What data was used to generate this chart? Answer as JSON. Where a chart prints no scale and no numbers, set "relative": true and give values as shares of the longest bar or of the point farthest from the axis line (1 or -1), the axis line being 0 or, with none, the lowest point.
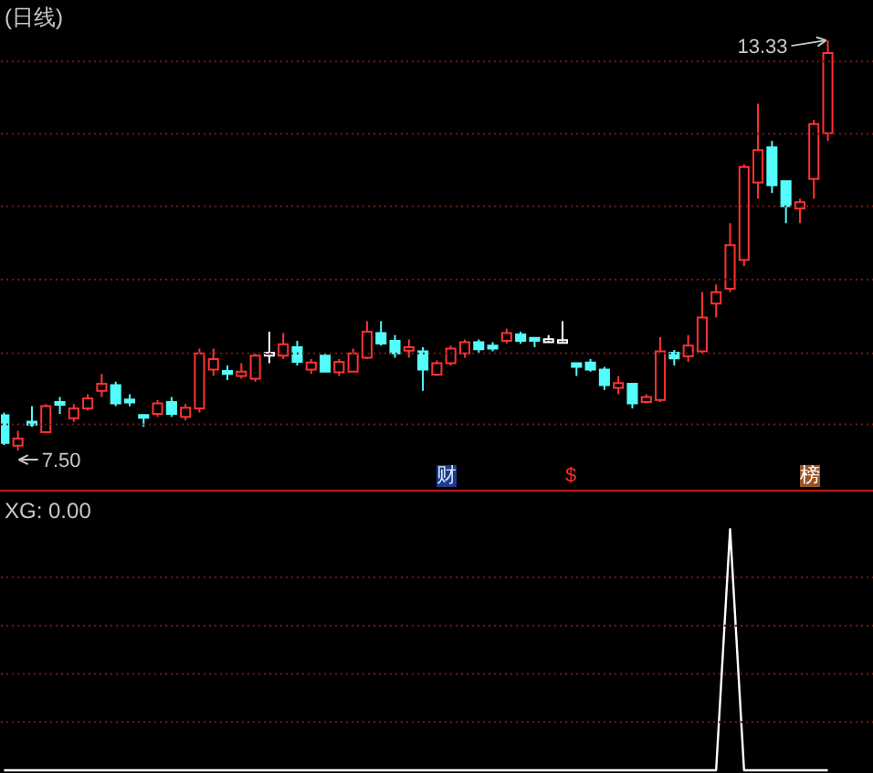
{
  "chart_data": [
    {
      "type": "candlestick",
      "title": "(日线)",
      "categories": [
        null,
        null,
        null,
        null,
        null,
        null,
        null,
        null,
        null,
        null,
        null,
        null,
        null,
        null,
        null,
        null,
        null,
        null,
        null,
        null,
        null,
        null,
        null,
        null,
        null,
        null,
        null,
        null,
        null,
        null,
        null,
        null,
        null,
        null,
        null,
        null,
        null,
        null,
        null,
        null,
        null,
        null,
        null,
        null,
        null,
        null,
        null,
        null,
        null,
        null,
        null,
        null,
        null,
        null,
        null,
        null,
        null,
        null,
        null,
        null
      ],
      "ohlc": [
        [
          8.0,
          8.04,
          7.58,
          7.61
        ],
        [
          7.57,
          7.78,
          7.5,
          7.67
        ],
        [
          7.91,
          8.13,
          7.84,
          7.87
        ],
        [
          7.76,
          8.16,
          7.76,
          8.13
        ],
        [
          8.19,
          8.26,
          8.02,
          8.15
        ],
        [
          7.96,
          8.16,
          7.91,
          8.1
        ],
        [
          8.1,
          8.3,
          8.07,
          8.24
        ],
        [
          8.35,
          8.59,
          8.26,
          8.45
        ],
        [
          8.43,
          8.48,
          8.13,
          8.17
        ],
        [
          8.22,
          8.3,
          8.13,
          8.19
        ],
        [
          8.0,
          8.0,
          7.84,
          7.97
        ],
        [
          8.02,
          8.22,
          7.98,
          8.17
        ],
        [
          8.19,
          8.26,
          7.98,
          8.02
        ],
        [
          7.98,
          8.16,
          7.93,
          8.11
        ],
        [
          8.1,
          8.95,
          8.04,
          8.88
        ],
        [
          8.65,
          8.95,
          8.56,
          8.8
        ],
        [
          8.63,
          8.71,
          8.5,
          8.59
        ],
        [
          8.56,
          8.74,
          8.52,
          8.62
        ],
        [
          8.52,
          8.88,
          8.48,
          8.85
        ],
        [
          8.87,
          9.19,
          8.74,
          8.87
        ],
        [
          8.85,
          9.17,
          8.8,
          9.01
        ],
        [
          8.97,
          9.06,
          8.71,
          8.76
        ],
        [
          8.65,
          8.8,
          8.59,
          8.75
        ],
        [
          8.85,
          8.88,
          8.61,
          8.62
        ],
        [
          8.61,
          8.8,
          8.56,
          8.76
        ],
        [
          8.62,
          8.95,
          8.61,
          8.88
        ],
        [
          8.82,
          9.34,
          8.8,
          9.19
        ],
        [
          9.17,
          9.34,
          8.99,
          9.02
        ],
        [
          9.06,
          9.14,
          8.82,
          8.88
        ],
        [
          8.92,
          9.08,
          8.82,
          8.97
        ],
        [
          8.91,
          8.97,
          8.35,
          8.65
        ],
        [
          8.58,
          8.78,
          8.56,
          8.74
        ],
        [
          8.74,
          8.99,
          8.71,
          8.95
        ],
        [
          8.88,
          9.08,
          8.82,
          9.04
        ],
        [
          9.04,
          9.08,
          8.88,
          8.94
        ],
        [
          8.99,
          9.04,
          8.91,
          8.95
        ],
        [
          9.06,
          9.23,
          9.02,
          9.17
        ],
        [
          9.15,
          9.19,
          9.02,
          9.06
        ],
        [
          9.1,
          9.1,
          8.97,
          9.06
        ],
        [
          9.06,
          9.14,
          9.06,
          9.06
        ],
        [
          9.05,
          9.34,
          9.05,
          9.05
        ],
        [
          8.74,
          8.74,
          8.56,
          8.69
        ],
        [
          8.75,
          8.8,
          8.62,
          8.65
        ],
        [
          8.65,
          8.69,
          8.36,
          8.43
        ],
        [
          8.39,
          8.56,
          8.3,
          8.46
        ],
        [
          8.45,
          8.45,
          8.1,
          8.17
        ],
        [
          8.19,
          8.3,
          8.17,
          8.26
        ],
        [
          8.22,
          9.11,
          8.19,
          8.91
        ],
        [
          8.89,
          8.93,
          8.71,
          8.81
        ],
        [
          8.84,
          9.14,
          8.76,
          8.99
        ],
        [
          8.91,
          9.75,
          8.88,
          9.39
        ],
        [
          9.59,
          9.86,
          9.39,
          9.75
        ],
        [
          9.8,
          10.73,
          9.75,
          10.42
        ],
        [
          10.21,
          11.57,
          10.12,
          11.53
        ],
        [
          11.31,
          12.43,
          11.08,
          11.77
        ],
        [
          11.81,
          11.9,
          11.16,
          11.27
        ],
        [
          11.33,
          11.33,
          10.73,
          10.97
        ],
        [
          10.94,
          11.08,
          10.73,
          11.03
        ],
        [
          11.36,
          12.2,
          11.08,
          12.14
        ],
        [
          12.01,
          13.33,
          11.9,
          13.15
        ]
      ],
      "colors": [
        "#54fcfc",
        "#ff3232",
        "#54fcfc",
        "#ff3232",
        "#54fcfc",
        "#ff3232",
        "#ff3232",
        "#ff3232",
        "#54fcfc",
        "#54fcfc",
        "#54fcfc",
        "#ff3232",
        "#54fcfc",
        "#ff3232",
        "#ff3232",
        "#ff3232",
        "#54fcfc",
        "#ff3232",
        "#ff3232",
        "#ffffff",
        "#ff3232",
        "#54fcfc",
        "#ff3232",
        "#54fcfc",
        "#ff3232",
        "#ff3232",
        "#ff3232",
        "#54fcfc",
        "#54fcfc",
        "#ff3232",
        "#54fcfc",
        "#ff3232",
        "#ff3232",
        "#ff3232",
        "#54fcfc",
        "#54fcfc",
        "#ff3232",
        "#54fcfc",
        "#54fcfc",
        "#ffffff",
        "#ffffff",
        "#54fcfc",
        "#54fcfc",
        "#54fcfc",
        "#ff3232",
        "#54fcfc",
        "#ff3232",
        "#ff3232",
        "#54fcfc",
        "#ff3232",
        "#ff3232",
        "#ff3232",
        "#ff3232",
        "#ff3232",
        "#ff3232",
        "#54fcfc",
        "#54fcfc",
        "#ff3232",
        "#ff3232",
        "#ff3232"
      ],
      "ylim": [
        6.93,
        13.89
      ],
      "ref_lines": [
        {
          "axis": "y",
          "value": 13.03,
          "color": "#7a1414",
          "line_style": "dotted"
        },
        {
          "axis": "y",
          "value": 12.0,
          "color": "#7a1414",
          "line_style": "dotted"
        },
        {
          "axis": "y",
          "value": 10.97,
          "color": "#7a1414",
          "line_style": "dotted"
        },
        {
          "axis": "y",
          "value": 9.93,
          "color": "#7a1414",
          "line_style": "dotted"
        },
        {
          "axis": "y",
          "value": 8.88,
          "color": "#7a1414",
          "line_style": "dotted"
        },
        {
          "axis": "y",
          "value": 7.87,
          "color": "#7a1414",
          "line_style": "dotted"
        }
      ],
      "tick_labels": false,
      "annotations": [
        "7.50",
        "13.33",
        "财",
        "$",
        "榜"
      ]
    },
    {
      "type": "line",
      "title": "XG: 0.00",
      "relative": true,
      "categories": [
        null,
        null,
        null,
        null,
        null,
        null,
        null,
        null,
        null,
        null,
        null,
        null,
        null,
        null,
        null,
        null,
        null,
        null,
        null,
        null,
        null,
        null,
        null,
        null,
        null,
        null,
        null,
        null,
        null,
        null,
        null,
        null,
        null,
        null,
        null,
        null,
        null,
        null,
        null,
        null,
        null,
        null,
        null,
        null,
        null,
        null,
        null,
        null,
        null,
        null,
        null,
        null,
        null,
        null,
        null,
        null,
        null,
        null,
        null,
        null
      ],
      "series": [
        {
          "color": "#ffffff",
          "values": [
            0,
            0,
            0,
            0,
            0,
            0,
            0,
            0,
            0,
            0,
            0,
            0,
            0,
            0,
            0,
            0,
            0,
            0,
            0,
            0,
            0,
            0,
            0,
            0,
            0,
            0,
            0,
            0,
            0,
            0,
            0,
            0,
            0,
            0,
            0,
            0,
            0,
            0,
            0,
            0,
            0,
            0,
            0,
            0,
            0,
            0,
            0,
            0,
            0,
            0,
            0,
            0,
            1,
            0,
            0,
            0,
            0,
            0,
            0,
            0
          ]
        }
      ],
      "ref_lines": [
        {
          "axis": "y",
          "value": 0.2,
          "color": "#7a1414",
          "line_style": "dotted"
        },
        {
          "axis": "y",
          "value": 0.4,
          "color": "#7a1414",
          "line_style": "dotted"
        },
        {
          "axis": "y",
          "value": 0.6,
          "color": "#7a1414",
          "line_style": "dotted"
        },
        {
          "axis": "y",
          "value": 0.8,
          "color": "#7a1414",
          "line_style": "dotted"
        }
      ],
      "tick_labels": false
    }
  ]
}
